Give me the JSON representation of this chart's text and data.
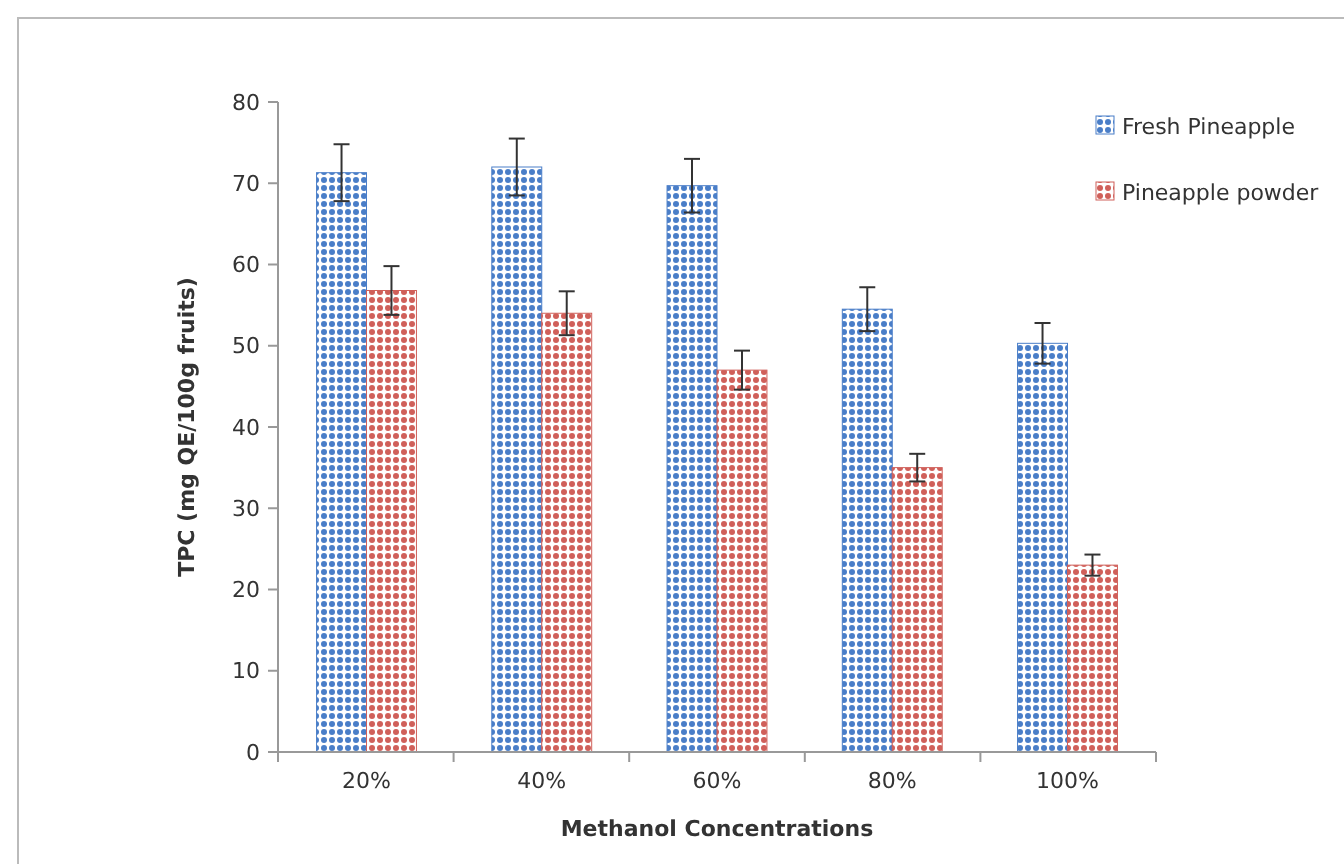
{
  "chart_data": {
    "type": "bar",
    "xlabel": "Methanol Concentrations",
    "ylabel": "TPC (mg QE/100g fruits)",
    "categories": [
      "20%",
      "40%",
      "60%",
      "80%",
      "100%"
    ],
    "series": [
      {
        "name": "Fresh Pineapple",
        "color": "#4a7ec8",
        "values": [
          71.3,
          72,
          69.7,
          54.5,
          50.3
        ],
        "errors": [
          3.5,
          3.5,
          3.3,
          2.7,
          2.5
        ]
      },
      {
        "name": "Pineapple powder",
        "color": "#d0605a",
        "values": [
          56.8,
          54,
          47,
          35,
          23
        ],
        "errors": [
          3,
          2.7,
          2.4,
          1.7,
          1.3
        ]
      }
    ],
    "ylim": [
      0,
      80
    ],
    "yticks": [
      0,
      10,
      20,
      30,
      40,
      50,
      60,
      70,
      80
    ],
    "grid": false,
    "legend": "top right"
  }
}
